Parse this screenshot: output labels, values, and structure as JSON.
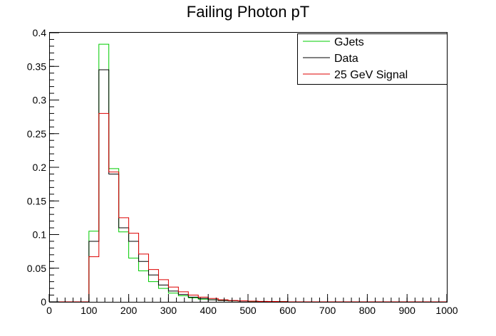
{
  "chart_data": {
    "type": "histogram",
    "title": "Failing Photon pT",
    "xlabel": "",
    "ylabel": "",
    "xlim": [
      0,
      1000
    ],
    "ylim": [
      0,
      0.4
    ],
    "bin_edges": [
      0,
      25,
      50,
      75,
      100,
      125,
      150,
      175,
      200,
      225,
      250,
      275,
      300,
      325,
      350,
      375,
      400,
      425,
      450,
      475,
      500,
      525,
      550,
      575,
      600,
      625,
      650,
      675,
      700,
      725,
      750,
      775,
      800,
      825,
      850,
      875,
      900,
      925,
      950,
      975,
      1000
    ],
    "x_ticks": [
      0,
      100,
      200,
      300,
      400,
      500,
      600,
      700,
      800,
      900,
      1000
    ],
    "x_tick_labels": [
      "0",
      "100",
      "200",
      "300",
      "400",
      "500",
      "600",
      "700",
      "800",
      "900",
      "1000"
    ],
    "y_ticks": [
      0,
      0.05,
      0.1,
      0.15,
      0.2,
      0.25,
      0.3,
      0.35,
      0.4
    ],
    "y_tick_labels": [
      "0",
      "0.05",
      "0.1",
      "0.15",
      "0.2",
      "0.25",
      "0.3",
      "0.35",
      "0.4"
    ],
    "grid": false,
    "legend_position": "top-right",
    "series": [
      {
        "name": "GJets",
        "color": "#00cc00",
        "values": [
          0,
          0,
          0,
          0,
          0.105,
          0.383,
          0.198,
          0.104,
          0.065,
          0.046,
          0.03,
          0.02,
          0.013,
          0.009,
          0.006,
          0.004,
          0.003,
          0.002,
          0.0015,
          0.001,
          0.0008,
          0.0005,
          0.0003,
          0.0002,
          0,
          0,
          0,
          0,
          0,
          0,
          0,
          0,
          0,
          0,
          0,
          0,
          0,
          0,
          0,
          0
        ]
      },
      {
        "name": "Data",
        "color": "#000000",
        "values": [
          0,
          0,
          0,
          0,
          0.09,
          0.345,
          0.19,
          0.11,
          0.09,
          0.06,
          0.04,
          0.025,
          0.016,
          0.011,
          0.007,
          0.005,
          0.003,
          0.002,
          0.0015,
          0.001,
          0.0008,
          0.0005,
          0.0003,
          0.0002,
          0,
          0,
          0,
          0,
          0,
          0,
          0,
          0,
          0,
          0,
          0,
          0,
          0,
          0,
          0,
          0
        ]
      },
      {
        "name": "25 GeV Signal",
        "color": "#dd0000",
        "values": [
          0,
          0,
          0,
          0,
          0.067,
          0.28,
          0.193,
          0.125,
          0.102,
          0.071,
          0.048,
          0.033,
          0.022,
          0.015,
          0.01,
          0.007,
          0.005,
          0.003,
          0.002,
          0.0015,
          0.001,
          0.0007,
          0.0005,
          0.0003,
          0,
          0,
          0,
          0,
          0,
          0,
          0,
          0,
          0,
          0,
          0,
          0,
          0,
          0,
          0,
          0
        ]
      }
    ]
  }
}
